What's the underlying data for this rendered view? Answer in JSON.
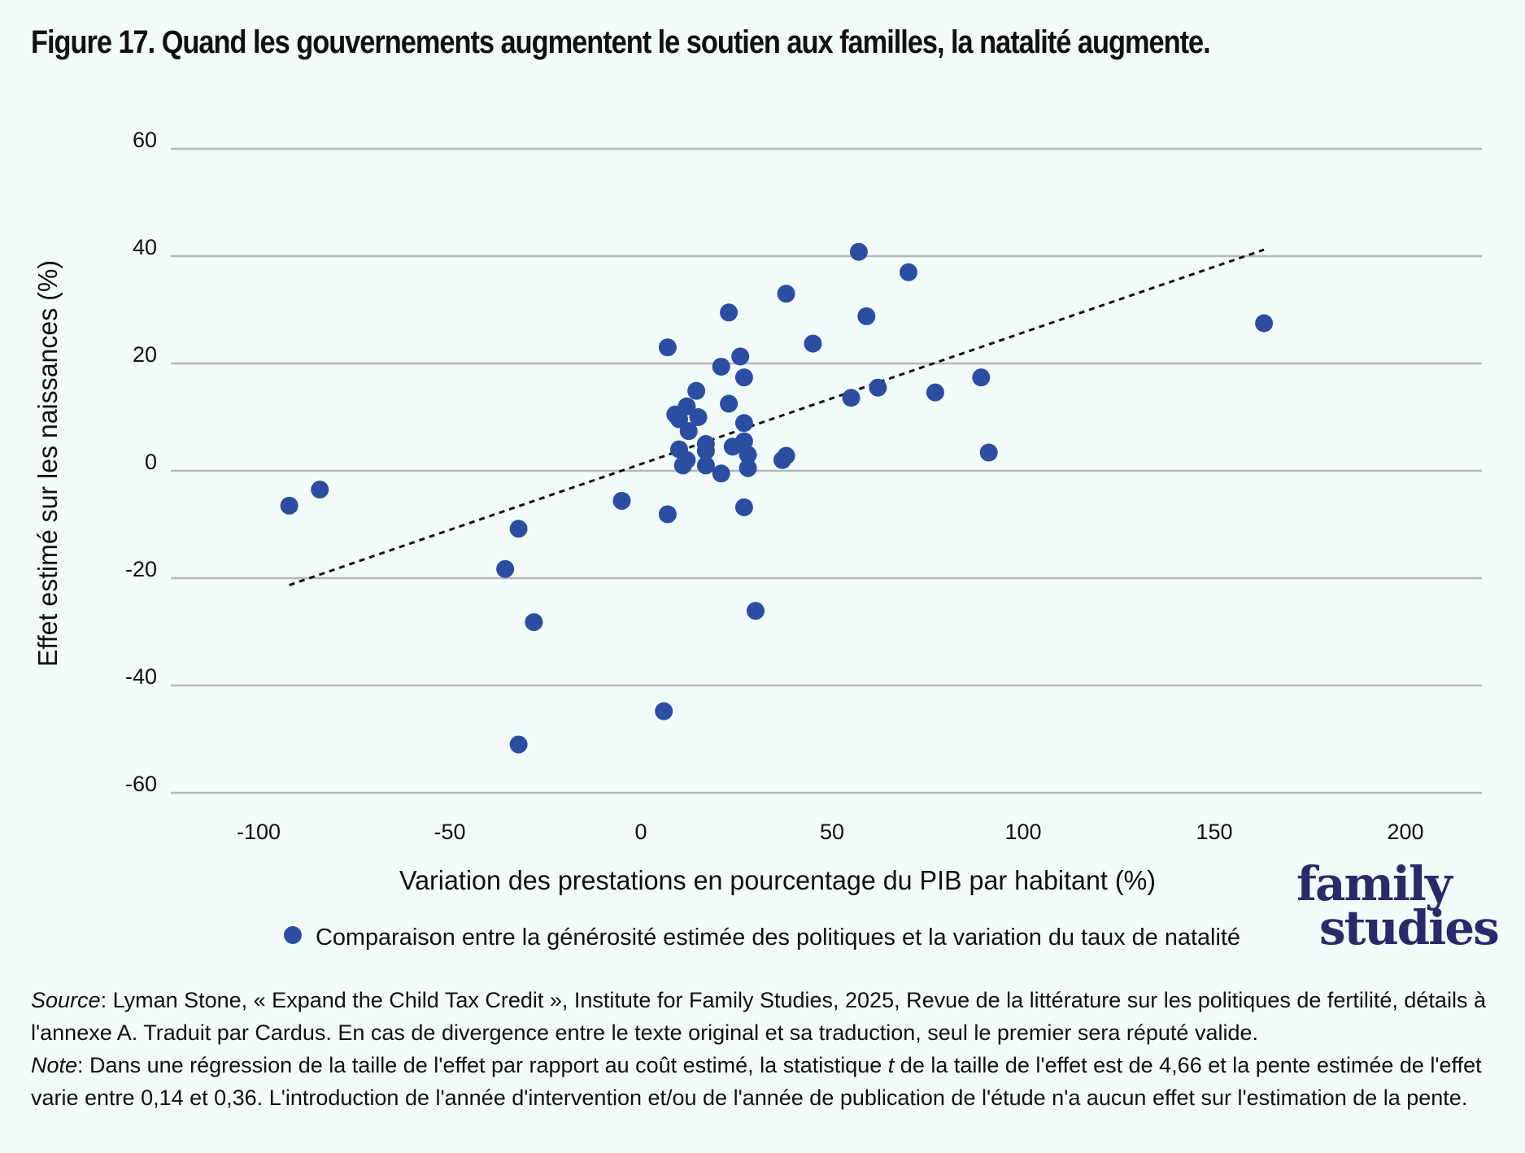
{
  "title": "Figure 17. Quand les gouvernements augmentent le soutien aux familles, la natalité augmente.",
  "logo": {
    "line1": "family",
    "line2": "studies"
  },
  "footer": {
    "source_label": "Source",
    "source_text": ": Lyman Stone, « Expand the Child Tax Credit », Institute for Family Studies, 2025, Revue de la littérature sur les politiques de fertilité, détails à l'annexe A. Traduit par Cardus. En cas de divergence entre le texte original et sa traduction, seul le premier sera réputé valide.",
    "note_label": "Note",
    "note_text_1": ": Dans une régression de la taille de l'effet par rapport au coût estimé, la statistique ",
    "note_t": "t",
    "note_text_2": " de la taille de l'effet est de 4,66 et la pente estimée de l'effet varie entre 0,14 et 0,36. L'introduction de l'année d'intervention et/ou de l'année de publication de l'étude n'a aucun effet sur l'estimation de la pente."
  },
  "colors": {
    "points": "#2b4ea3",
    "grid": "#b4b8b8",
    "trend": "#111111"
  },
  "chart_data": {
    "type": "scatter",
    "xlabel": "Variation des prestations en pourcentage du PIB par habitant (%)",
    "ylabel": "Effet estimé sur les naissances (%)",
    "xlim": [
      -135,
      220
    ],
    "ylim": [
      -60,
      60
    ],
    "xticks": [
      -100,
      -50,
      0,
      50,
      100,
      150,
      200
    ],
    "yticks": [
      60,
      40,
      20,
      0,
      -20,
      -40,
      -60
    ],
    "xtick_labels": [
      "-100",
      "-50",
      "0",
      "50",
      "100",
      "150",
      "200"
    ],
    "ytick_labels": [
      "60",
      "40",
      "20",
      "0",
      "-20",
      "-40",
      "-60"
    ],
    "grid": "horizontal",
    "legend_position": "bottom",
    "series": [
      {
        "name": "Comparaison entre la générosité estimée des politiques et la variation du taux de natalité",
        "points": [
          [
            -92,
            -6.5
          ],
          [
            -84,
            -3.5
          ],
          [
            -32,
            -10.8
          ],
          [
            -35.5,
            -18.3
          ],
          [
            -28,
            -28.2
          ],
          [
            -32,
            -51
          ],
          [
            -5,
            -5.6
          ],
          [
            7,
            -8.1
          ],
          [
            6,
            -44.8
          ],
          [
            7,
            23
          ],
          [
            9,
            10.5
          ],
          [
            10,
            9.6
          ],
          [
            10,
            4
          ],
          [
            11,
            1
          ],
          [
            12,
            2
          ],
          [
            12,
            12
          ],
          [
            12.5,
            7.4
          ],
          [
            14.5,
            14.9
          ],
          [
            15,
            10
          ],
          [
            17,
            5
          ],
          [
            17,
            3.7
          ],
          [
            17,
            1
          ],
          [
            21,
            19.4
          ],
          [
            21,
            -0.5
          ],
          [
            23,
            29.5
          ],
          [
            23,
            12.5
          ],
          [
            24,
            4.5
          ],
          [
            26,
            21.3
          ],
          [
            27,
            17.4
          ],
          [
            27,
            8.9
          ],
          [
            27,
            5.5
          ],
          [
            28,
            3
          ],
          [
            28,
            0.5
          ],
          [
            27,
            -6.8
          ],
          [
            30,
            -26.1
          ],
          [
            37,
            2
          ],
          [
            38,
            2.8
          ],
          [
            38,
            33
          ],
          [
            45,
            23.7
          ],
          [
            55,
            13.6
          ],
          [
            57,
            40.8
          ],
          [
            59,
            28.8
          ],
          [
            62,
            15.5
          ],
          [
            70,
            37
          ],
          [
            77,
            14.6
          ],
          [
            89,
            17.4
          ],
          [
            91,
            3.4
          ],
          [
            163,
            27.5
          ]
        ]
      }
    ],
    "trendline": {
      "x": [
        -92,
        163
      ],
      "y": [
        -21.3,
        41.2
      ]
    }
  }
}
